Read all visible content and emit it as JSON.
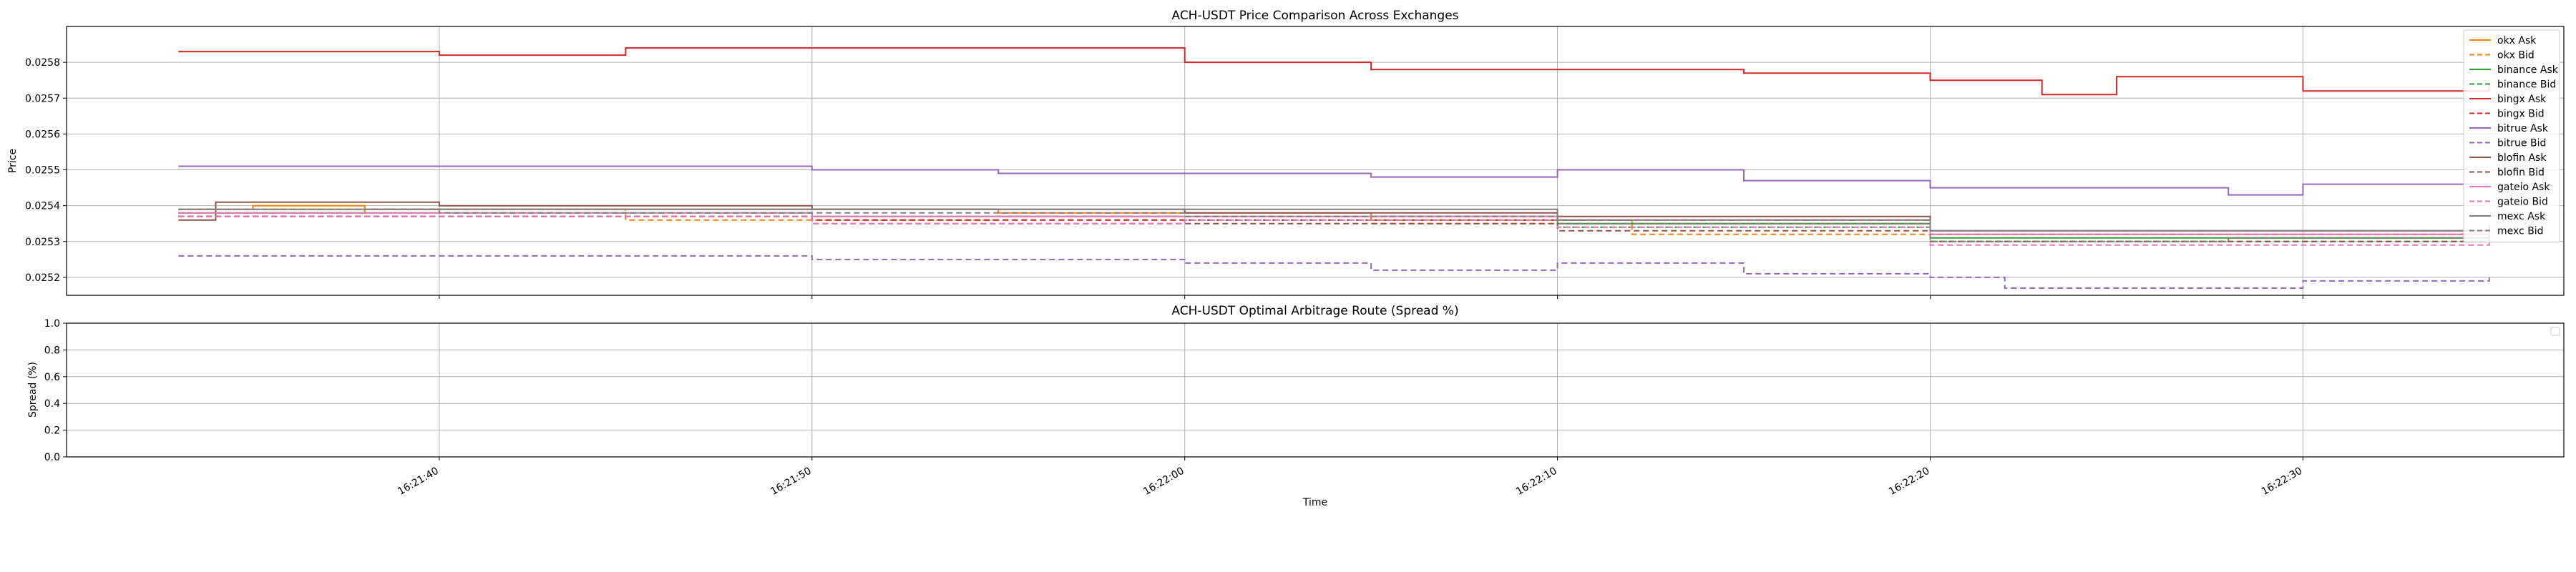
{
  "figure": {
    "xlabel": "Time",
    "x_ticks": [
      "16:21:40",
      "16:21:50",
      "16:22:00",
      "16:22:10",
      "16:22:20",
      "16:22:30"
    ]
  },
  "chart_data": [
    {
      "type": "line",
      "title": "ACH-USDT Price Comparison Across Exchanges",
      "xlabel": "Time",
      "ylabel": "Price",
      "x_range": [
        "16:21:30",
        "16:22:37"
      ],
      "ylim": [
        0.02515,
        0.0259
      ],
      "y_ticks": [
        "0.0252",
        "0.0253",
        "0.0254",
        "0.0255",
        "0.0256",
        "0.0257",
        "0.0258"
      ],
      "grid": true,
      "legend_position": "upper right",
      "series": [
        {
          "name": "okx Ask",
          "color": "#ff7f0e",
          "dash": false,
          "x": [
            "16:21:33",
            "16:21:35",
            "16:21:38",
            "16:21:55",
            "16:22:05",
            "16:22:12",
            "16:22:20",
            "16:22:28",
            "16:22:35"
          ],
          "y": [
            0.02539,
            0.0254,
            0.02539,
            0.02538,
            0.02536,
            0.02535,
            0.02532,
            0.02532,
            0.02533
          ]
        },
        {
          "name": "okx Bid",
          "color": "#ff7f0e",
          "dash": true,
          "x": [
            "16:21:33",
            "16:21:38",
            "16:21:45",
            "16:21:55",
            "16:22:05",
            "16:22:12",
            "16:22:20",
            "16:22:28",
            "16:22:35"
          ],
          "y": [
            0.02538,
            0.02539,
            0.02536,
            0.02537,
            0.02535,
            0.02532,
            0.0253,
            0.02531,
            0.02531
          ]
        },
        {
          "name": "binance Ask",
          "color": "#2ca02c",
          "dash": false,
          "x": [
            "16:21:33",
            "16:21:40",
            "16:21:50",
            "16:22:00",
            "16:22:10",
            "16:22:20",
            "16:22:28",
            "16:22:35"
          ],
          "y": [
            0.02538,
            0.02538,
            0.02537,
            0.02537,
            0.02535,
            0.02531,
            0.02531,
            0.02532
          ]
        },
        {
          "name": "binance Bid",
          "color": "#2ca02c",
          "dash": true,
          "x": [
            "16:21:33",
            "16:21:40",
            "16:21:50",
            "16:22:00",
            "16:22:10",
            "16:22:20",
            "16:22:28",
            "16:22:35"
          ],
          "y": [
            0.02537,
            0.02537,
            0.02536,
            0.02536,
            0.02534,
            0.0253,
            0.0253,
            0.02531
          ]
        },
        {
          "name": "bingx Ask",
          "color": "#d62728",
          "dash": false,
          "x": [
            "16:21:33",
            "16:21:36",
            "16:21:40",
            "16:21:45",
            "16:21:55",
            "16:22:00",
            "16:22:05",
            "16:22:10",
            "16:22:15",
            "16:22:20",
            "16:22:23",
            "16:22:25",
            "16:22:28",
            "16:22:30",
            "16:22:35"
          ],
          "y": [
            0.02583,
            0.02583,
            0.02582,
            0.02584,
            0.02584,
            0.0258,
            0.02578,
            0.02578,
            0.02577,
            0.02575,
            0.02571,
            0.02576,
            0.02576,
            0.02572,
            0.02574
          ]
        },
        {
          "name": "bingx Bid",
          "color": "#d62728",
          "dash": true,
          "x": [
            "16:21:33",
            "16:21:40",
            "16:21:50",
            "16:22:00",
            "16:22:10",
            "16:22:20",
            "16:22:28",
            "16:22:35"
          ],
          "y": [
            0.02537,
            0.02537,
            0.02536,
            0.02536,
            0.02536,
            0.02532,
            0.02532,
            0.02532
          ]
        },
        {
          "name": "bitrue Ask",
          "color": "#9467bd",
          "dash": false,
          "x": [
            "16:21:33",
            "16:21:40",
            "16:21:50",
            "16:21:55",
            "16:22:00",
            "16:22:05",
            "16:22:10",
            "16:22:15",
            "16:22:20",
            "16:22:25",
            "16:22:28",
            "16:22:30",
            "16:22:35"
          ],
          "y": [
            0.02551,
            0.02551,
            0.0255,
            0.02549,
            0.02549,
            0.02548,
            0.0255,
            0.02547,
            0.02545,
            0.02545,
            0.02543,
            0.02546,
            0.02546
          ]
        },
        {
          "name": "bitrue Bid",
          "color": "#9467bd",
          "dash": true,
          "x": [
            "16:21:33",
            "16:21:40",
            "16:21:50",
            "16:22:00",
            "16:22:05",
            "16:22:10",
            "16:22:15",
            "16:22:20",
            "16:22:22",
            "16:22:30",
            "16:22:35"
          ],
          "y": [
            0.02526,
            0.02526,
            0.02525,
            0.02524,
            0.02522,
            0.02524,
            0.02521,
            0.0252,
            0.02517,
            0.02519,
            0.0252
          ]
        },
        {
          "name": "blofin Ask",
          "color": "#8c564b",
          "dash": false,
          "x": [
            "16:21:33",
            "16:21:34",
            "16:21:40",
            "16:21:50",
            "16:22:00",
            "16:22:10",
            "16:22:20",
            "16:22:28",
            "16:22:35"
          ],
          "y": [
            0.02536,
            0.02541,
            0.0254,
            0.02539,
            0.02538,
            0.02537,
            0.02533,
            0.02533,
            0.02535
          ]
        },
        {
          "name": "blofin Bid",
          "color": "#8c564b",
          "dash": true,
          "x": [
            "16:21:33",
            "16:21:40",
            "16:21:50",
            "16:22:00",
            "16:22:10",
            "16:22:20",
            "16:22:28",
            "16:22:35"
          ],
          "y": [
            0.02537,
            0.02537,
            0.02535,
            0.02535,
            0.02533,
            0.0253,
            0.0253,
            0.0253
          ]
        },
        {
          "name": "gateio Ask",
          "color": "#e377c2",
          "dash": false,
          "x": [
            "16:21:33",
            "16:21:40",
            "16:21:50",
            "16:22:00",
            "16:22:10",
            "16:22:20",
            "16:22:28",
            "16:22:35"
          ],
          "y": [
            0.02538,
            0.02538,
            0.02537,
            0.02537,
            0.02536,
            0.02532,
            0.02532,
            0.02533
          ]
        },
        {
          "name": "gateio Bid",
          "color": "#e377c2",
          "dash": true,
          "x": [
            "16:21:33",
            "16:21:40",
            "16:21:50",
            "16:22:00",
            "16:22:10",
            "16:22:20",
            "16:22:28",
            "16:22:35"
          ],
          "y": [
            0.02537,
            0.02537,
            0.02535,
            0.02536,
            0.02534,
            0.02529,
            0.02529,
            0.0253
          ]
        },
        {
          "name": "mexc Ask",
          "color": "#7f7f7f",
          "dash": false,
          "x": [
            "16:21:33",
            "16:21:40",
            "16:21:50",
            "16:22:00",
            "16:22:10",
            "16:22:20",
            "16:22:28",
            "16:22:35"
          ],
          "y": [
            0.02539,
            0.02539,
            0.02539,
            0.02539,
            0.02536,
            0.02533,
            0.02533,
            0.02533
          ]
        },
        {
          "name": "mexc Bid",
          "color": "#7f7f7f",
          "dash": true,
          "x": [
            "16:21:33",
            "16:21:40",
            "16:21:50",
            "16:22:00",
            "16:22:10",
            "16:22:20",
            "16:22:28",
            "16:22:35"
          ],
          "y": [
            0.02539,
            0.02538,
            0.02538,
            0.02537,
            0.02535,
            0.0253,
            0.02531,
            0.02531
          ]
        }
      ]
    },
    {
      "type": "line",
      "title": "ACH-USDT Optimal Arbitrage Route (Spread %)",
      "xlabel": "Time",
      "ylabel": "Spread (%)",
      "ylim": [
        0.0,
        1.0
      ],
      "y_ticks": [
        "0.0",
        "0.2",
        "0.4",
        "0.6",
        "0.8",
        "1.0"
      ],
      "grid": true,
      "legend_position": "upper right",
      "series": []
    }
  ]
}
